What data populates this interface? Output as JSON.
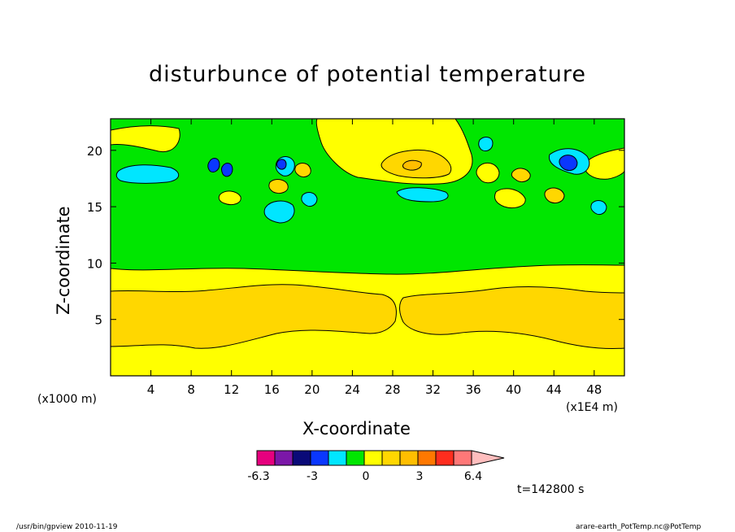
{
  "chart_data": {
    "type": "heatmap",
    "title": "disturbunce of potential temperature",
    "xlabel": "X-coordinate",
    "ylabel": "Z-coordinate",
    "x_unit": "(x1E4 m)",
    "y_unit": "(x1000 m)",
    "xlim": [
      0,
      51
    ],
    "ylim": [
      0,
      22.8
    ],
    "x_ticks": [
      4,
      8,
      12,
      16,
      20,
      24,
      28,
      32,
      36,
      40,
      44,
      48
    ],
    "y_ticks": [
      5,
      10,
      15,
      20
    ],
    "x_tick_labels": [
      "4",
      "8",
      "12",
      "16",
      "20",
      "24",
      "28",
      "32",
      "36",
      "40",
      "44",
      "48"
    ],
    "y_tick_labels": [
      "5",
      "10",
      "15",
      "20"
    ],
    "colorbar": {
      "labels": [
        "-6.3",
        "-3",
        "0",
        "3",
        "6.4"
      ],
      "colors": [
        "#e6007e",
        "#7b17a8",
        "#0a0a78",
        "#0a37ff",
        "#00e6ff",
        "#00e600",
        "#ffff00",
        "#ffd700",
        "#ffbe00",
        "#ff7800",
        "#ff2d1e",
        "#ff7878",
        "#ffbebe"
      ]
    },
    "time_label": "t=142800 s"
  },
  "footer": {
    "left": "/usr/bin/gpview   2010-11-19",
    "right": "arare-earth_PotTemp.nc@PotTemp"
  }
}
